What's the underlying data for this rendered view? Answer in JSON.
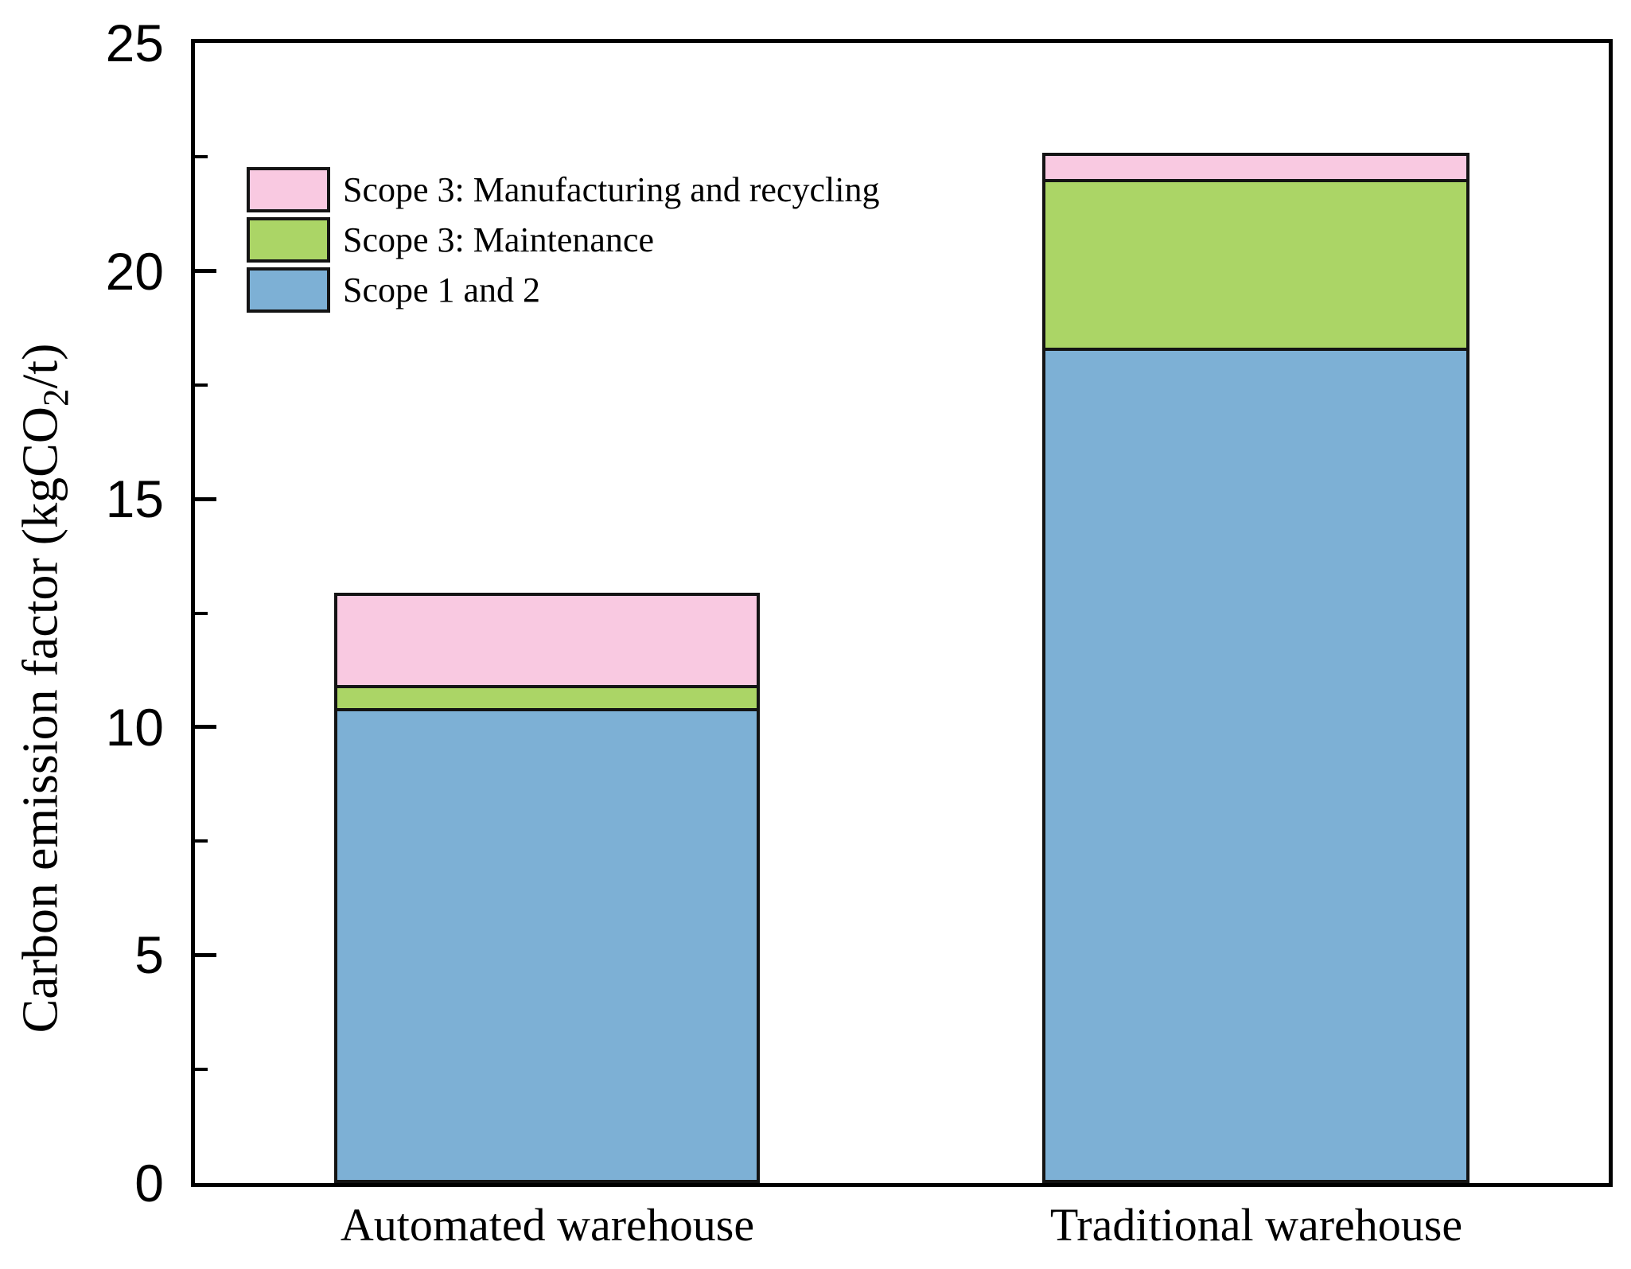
{
  "chart_data": {
    "type": "bar",
    "stacked": true,
    "title": "",
    "categories": [
      "Automated warehouse",
      "Traditional warehouse"
    ],
    "series": [
      {
        "name": "Scope 1 and 2",
        "color": "#7db0d5",
        "values": [
          10.35,
          18.25
        ]
      },
      {
        "name": "Scope 3: Maintenance",
        "color": "#abd566",
        "values": [
          0.5,
          3.7
        ]
      },
      {
        "name": "Scope 3: Manufacturing and recycling",
        "color": "#f9c9e1",
        "values": [
          2.1,
          0.65
        ]
      }
    ],
    "totals": [
      12.95,
      22.6
    ],
    "ylabel": "Carbon emission factor (kgCO2/t)",
    "ylabel_parts": {
      "prefix": "Carbon emission factor (kgCO",
      "sub": "2",
      "suffix": "/t)"
    },
    "xlabel": "",
    "ylim": [
      0,
      25
    ],
    "yticks": [
      0,
      5,
      10,
      15,
      20,
      25
    ],
    "minor_yticks": [
      2.5,
      7.5,
      12.5,
      17.5,
      22.5
    ],
    "grid": false,
    "legend_position": "upper-left-inside",
    "legend_order_top_to_bottom": [
      "Scope 3: Manufacturing and recycling",
      "Scope 3: Maintenance",
      "Scope 1 and 2"
    ],
    "bar_border_color": "#141414",
    "axis_color": "#000000",
    "background_color": "#ffffff"
  }
}
